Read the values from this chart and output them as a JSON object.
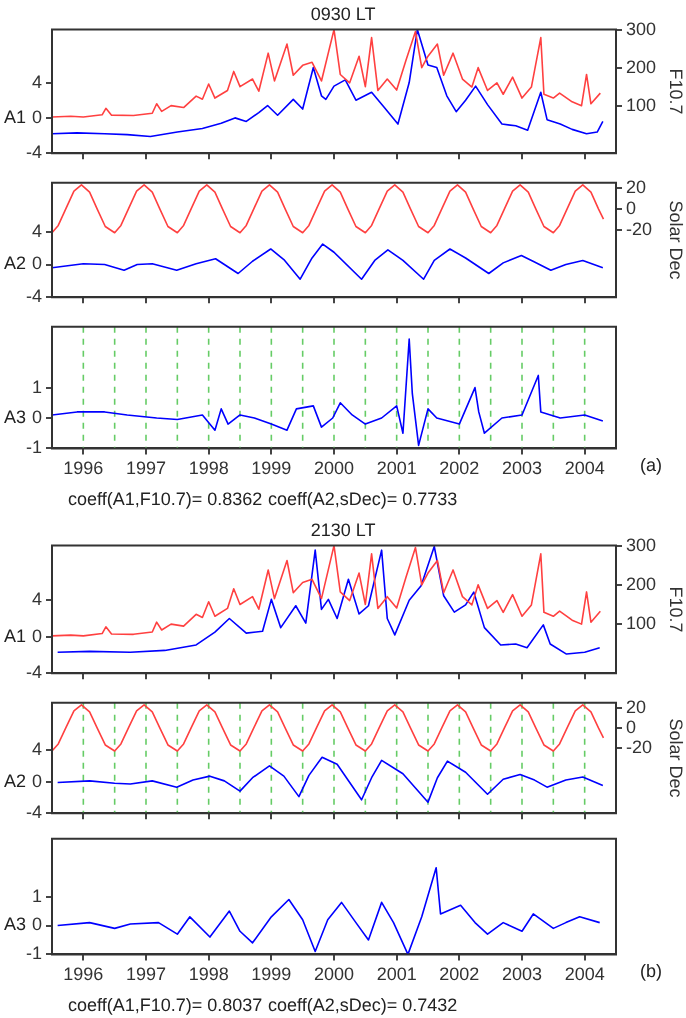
{
  "chart_data": [
    {
      "type": "line",
      "title": "0930 LT",
      "ylabel": "A1",
      "y2label": "F10.7",
      "xlim": [
        1996,
        2005
      ],
      "xticks": [
        {
          "value": 1996.5,
          "label": null
        },
        {
          "value": 1997.5,
          "label": null
        },
        {
          "value": 1998.5,
          "label": null
        },
        {
          "value": 1999.5,
          "label": null
        },
        {
          "value": 2000.5,
          "label": null
        },
        {
          "value": 2001.5,
          "label": null
        },
        {
          "value": 2002.5,
          "label": null
        },
        {
          "value": 2003.5,
          "label": null
        },
        {
          "value": 2004.5,
          "label": null
        }
      ],
      "ylim": [
        -4,
        10
      ],
      "yticks": [
        -4,
        0,
        4
      ],
      "y2lim": [
        -25,
        300
      ],
      "y2ticks": [
        100,
        200,
        300
      ],
      "tick_labels": "y",
      "series": [
        {
          "color": "#ff4040",
          "axis": "y2",
          "x": [
            1996.0,
            1996.3,
            1996.5,
            1996.8,
            1996.86,
            1996.95,
            1997.3,
            1997.6,
            1997.67,
            1997.75,
            1997.9,
            1998.1,
            1998.3,
            1998.4,
            1998.5,
            1998.6,
            1998.8,
            1998.9,
            1999.0,
            1999.2,
            1999.3,
            1999.45,
            1999.55,
            1999.75,
            1999.85,
            2000.0,
            2000.15,
            2000.3,
            2000.5,
            2000.6,
            2000.75,
            2000.9,
            2001.0,
            2001.1,
            2001.2,
            2001.35,
            2001.5,
            2001.65,
            2001.8,
            2001.9,
            2002.0,
            2002.15,
            2002.25,
            2002.4,
            2002.55,
            2002.7,
            2002.8,
            2002.95,
            2003.1,
            2003.2,
            2003.35,
            2003.5,
            2003.65,
            2003.8,
            2003.85,
            2004.0,
            2004.1,
            2004.3,
            2004.45,
            2004.53,
            2004.6,
            2004.75
          ],
          "values": [
            70,
            72,
            70,
            76,
            93,
            75,
            74,
            80,
            105,
            85,
            100,
            95,
            125,
            117,
            157,
            120,
            140,
            190,
            150,
            170,
            138,
            238,
            165,
            262,
            180,
            206,
            214,
            165,
            300,
            182,
            160,
            230,
            150,
            279,
            140,
            170,
            141,
            220,
            295,
            200,
            230,
            262,
            180,
            238,
            170,
            149,
            200,
            140,
            160,
            130,
            175,
            120,
            149,
            279,
            130,
            120,
            133,
            110,
            100,
            182,
            105,
            133
          ]
        },
        {
          "color": "#0000ff",
          "x": [
            1996.0,
            1996.4,
            1996.84,
            1997.2,
            1997.57,
            1998.0,
            1998.4,
            1998.7,
            1998.92,
            1999.1,
            1999.3,
            1999.44,
            1999.6,
            1999.85,
            2000.0,
            2000.17,
            2000.3,
            2000.37,
            2000.5,
            2000.68,
            2000.85,
            2001.1,
            2001.3,
            2001.52,
            2001.7,
            2001.83,
            2002.0,
            2002.14,
            2002.3,
            2002.45,
            2002.6,
            2002.76,
            2002.95,
            2003.18,
            2003.4,
            2003.59,
            2003.8,
            2003.9,
            2004.11,
            2004.3,
            2004.53,
            2004.7,
            2004.79
          ],
          "values": [
            -1.8,
            -1.7,
            -1.8,
            -1.9,
            -2.1,
            -1.6,
            -1.2,
            -0.6,
            0,
            -0.4,
            0.6,
            1.4,
            0.3,
            2.1,
            1.0,
            5.7,
            2.5,
            2.1,
            3.6,
            4.3,
            2.0,
            2.9,
            1.2,
            -0.7,
            4.0,
            10,
            6.0,
            5.7,
            2.5,
            0.7,
            2.0,
            3.6,
            1.5,
            -0.7,
            -0.9,
            -1.4,
            2.9,
            -0.2,
            -0.7,
            -1.3,
            -1.8,
            -1.6,
            -0.4
          ]
        }
      ]
    },
    {
      "type": "line",
      "ylabel": "A2",
      "y2label": "Solar Dec",
      "xlim": [
        1996,
        2005
      ],
      "xticks": [
        {
          "value": 1996.5,
          "label": null
        },
        {
          "value": 1997.5,
          "label": null
        },
        {
          "value": 1998.5,
          "label": null
        },
        {
          "value": 1999.5,
          "label": null
        },
        {
          "value": 2000.5,
          "label": null
        },
        {
          "value": 2001.5,
          "label": null
        },
        {
          "value": 2002.5,
          "label": null
        },
        {
          "value": 2003.5,
          "label": null
        },
        {
          "value": 2004.5,
          "label": null
        }
      ],
      "ylim": [
        -4,
        10
      ],
      "yticks": [
        -4,
        0,
        4
      ],
      "y2lim": [
        -85,
        25
      ],
      "y2ticks": [
        -20,
        0,
        20
      ],
      "tick_labels": "y",
      "series": [
        {
          "color": "#ff4040",
          "axis": "y2",
          "x": [
            1996,
            1996.1,
            1996.22,
            1996.35,
            1996.47,
            1996.6,
            1996.72,
            1996.85,
            1997,
            1997.1,
            1997.22,
            1997.35,
            1997.47,
            1997.6,
            1997.72,
            1997.85,
            1998,
            1998.1,
            1998.22,
            1998.35,
            1998.47,
            1998.6,
            1998.72,
            1998.85,
            1999,
            1999.1,
            1999.22,
            1999.35,
            1999.47,
            1999.6,
            1999.72,
            1999.85,
            2000,
            2000.1,
            2000.22,
            2000.35,
            2000.47,
            2000.6,
            2000.72,
            2000.85,
            2001,
            2001.1,
            2001.22,
            2001.35,
            2001.47,
            2001.6,
            2001.72,
            2001.85,
            2002,
            2002.1,
            2002.22,
            2002.35,
            2002.47,
            2002.6,
            2002.72,
            2002.85,
            2003,
            2003.1,
            2003.22,
            2003.35,
            2003.47,
            2003.6,
            2003.72,
            2003.85,
            2004,
            2004.1,
            2004.22,
            2004.35,
            2004.47,
            2004.6,
            2004.72,
            2004.8
          ],
          "values": [
            -23,
            -16,
            0,
            17,
            23,
            16,
            0,
            -17,
            -23,
            -16,
            0,
            17,
            23,
            16,
            0,
            -17,
            -23,
            -16,
            0,
            17,
            23,
            16,
            0,
            -17,
            -23,
            -16,
            0,
            17,
            23,
            16,
            0,
            -17,
            -23,
            -16,
            0,
            17,
            23,
            16,
            0,
            -17,
            -23,
            -16,
            0,
            17,
            23,
            16,
            0,
            -17,
            -23,
            -16,
            0,
            17,
            23,
            16,
            0,
            -17,
            -23,
            -16,
            0,
            17,
            23,
            16,
            0,
            -17,
            -23,
            -16,
            0,
            17,
            23,
            16,
            0,
            -10
          ]
        },
        {
          "color": "#0000ff",
          "x": [
            1996.0,
            1996.5,
            1996.84,
            1997.15,
            1997.36,
            1997.6,
            1997.99,
            1998.3,
            1998.61,
            1998.97,
            1999.2,
            1999.49,
            1999.7,
            1999.96,
            2000.15,
            2000.32,
            2000.5,
            2000.94,
            2001.15,
            2001.36,
            2001.6,
            2001.93,
            2002.1,
            2002.35,
            2002.6,
            2002.97,
            2003.2,
            2003.49,
            2003.7,
            2003.96,
            2004.2,
            2004.47,
            2004.79
          ],
          "values": [
            -0.4,
            0.1,
            0,
            -0.7,
            0,
            0.1,
            -0.7,
            0.1,
            0.7,
            -1.1,
            0.4,
            1.9,
            0.6,
            -1.8,
            0.8,
            2.5,
            1.5,
            -1.8,
            0.5,
            1.8,
            0.5,
            -1.8,
            0.5,
            1.9,
            0.8,
            -1.1,
            0.2,
            1.1,
            0.3,
            -0.7,
            0,
            0.5,
            -0.4
          ]
        }
      ]
    },
    {
      "type": "line",
      "ylabel": "A3",
      "xlim": [
        1996,
        2005
      ],
      "xticks": [
        {
          "value": 1996.5,
          "label": "1996"
        },
        {
          "value": 1997.5,
          "label": "1997"
        },
        {
          "value": 1998.5,
          "label": "1998"
        },
        {
          "value": 1999.5,
          "label": "1999"
        },
        {
          "value": 2000.5,
          "label": "2000"
        },
        {
          "value": 2001.5,
          "label": "2001"
        },
        {
          "value": 2002.5,
          "label": "2002"
        },
        {
          "value": 2003.5,
          "label": "2003"
        },
        {
          "value": 2004.5,
          "label": "2004"
        }
      ],
      "ylim": [
        -1,
        3
      ],
      "yticks": [
        -1,
        0,
        1
      ],
      "annotations": [
        "(a)",
        "coeff(A1,F10.7)= 0.8362",
        "coeff(A2,sDec)= 0.7733"
      ],
      "ref_lines": [
        {
          "axis": "x",
          "value": 1996.5,
          "color": "#66cc66",
          "line_style": "dashed"
        },
        {
          "axis": "x",
          "value": 1997,
          "color": "#66cc66",
          "line_style": "dashed"
        },
        {
          "axis": "x",
          "value": 1997.5,
          "color": "#66cc66",
          "line_style": "dashed"
        },
        {
          "axis": "x",
          "value": 1998,
          "color": "#66cc66",
          "line_style": "dashed"
        },
        {
          "axis": "x",
          "value": 1998.5,
          "color": "#66cc66",
          "line_style": "dashed"
        },
        {
          "axis": "x",
          "value": 1999,
          "color": "#66cc66",
          "line_style": "dashed"
        },
        {
          "axis": "x",
          "value": 1999.5,
          "color": "#66cc66",
          "line_style": "dashed"
        },
        {
          "axis": "x",
          "value": 2000,
          "color": "#66cc66",
          "line_style": "dashed"
        },
        {
          "axis": "x",
          "value": 2000.5,
          "color": "#66cc66",
          "line_style": "dashed"
        },
        {
          "axis": "x",
          "value": 2001,
          "color": "#66cc66",
          "line_style": "dashed"
        },
        {
          "axis": "x",
          "value": 2001.5,
          "color": "#66cc66",
          "line_style": "dashed"
        },
        {
          "axis": "x",
          "value": 2002,
          "color": "#66cc66",
          "line_style": "dashed"
        },
        {
          "axis": "x",
          "value": 2002.5,
          "color": "#66cc66",
          "line_style": "dashed"
        },
        {
          "axis": "x",
          "value": 2003,
          "color": "#66cc66",
          "line_style": "dashed"
        },
        {
          "axis": "x",
          "value": 2003.5,
          "color": "#66cc66",
          "line_style": "dashed"
        },
        {
          "axis": "x",
          "value": 2004,
          "color": "#66cc66",
          "line_style": "dashed"
        },
        {
          "axis": "x",
          "value": 2004.5,
          "color": "#66cc66",
          "line_style": "dashed"
        }
      ],
      "series": [
        {
          "color": "#0000ff",
          "x": [
            1996.0,
            1996.4,
            1996.84,
            1997.2,
            1997.67,
            1998.0,
            1998.4,
            1998.6,
            1998.7,
            1998.81,
            1999.0,
            1999.23,
            1999.5,
            1999.75,
            1999.9,
            2000.17,
            2000.3,
            2000.48,
            2000.6,
            2000.79,
            2001.0,
            2001.26,
            2001.5,
            2001.6,
            2001.7,
            2001.75,
            2001.85,
            2002.0,
            2002.14,
            2002.5,
            2002.75,
            2002.81,
            2002.9,
            2003.18,
            2003.5,
            2003.76,
            2003.8,
            2004.11,
            2004.5,
            2004.79
          ],
          "values": [
            0.1,
            0.2,
            0.2,
            0.1,
            0,
            -0.05,
            0.1,
            -0.4,
            0.3,
            -0.2,
            0.1,
            0,
            -0.2,
            -0.4,
            0.3,
            0.4,
            -0.3,
            0,
            0.5,
            0.1,
            -0.2,
            0,
            0.4,
            -0.5,
            2.6,
            0.8,
            -0.9,
            0.3,
            0,
            -0.2,
            1.0,
            0.2,
            -0.5,
            0,
            0.1,
            1.4,
            0.2,
            0,
            0.1,
            -0.1
          ]
        }
      ]
    },
    {
      "type": "line",
      "title": "2130 LT",
      "ylabel": "A1",
      "y2label": "F10.7",
      "xlim": [
        1996,
        2005
      ],
      "xticks": [
        {
          "value": 1996.5,
          "label": null
        },
        {
          "value": 1997.5,
          "label": null
        },
        {
          "value": 1998.5,
          "label": null
        },
        {
          "value": 1999.5,
          "label": null
        },
        {
          "value": 2000.5,
          "label": null
        },
        {
          "value": 2001.5,
          "label": null
        },
        {
          "value": 2002.5,
          "label": null
        },
        {
          "value": 2003.5,
          "label": null
        },
        {
          "value": 2004.5,
          "label": null
        }
      ],
      "ylim": [
        -4,
        10
      ],
      "yticks": [
        -4,
        0,
        4
      ],
      "y2lim": [
        -25,
        300
      ],
      "y2ticks": [
        100,
        200,
        300
      ],
      "tick_labels": "y",
      "series": [
        {
          "color": "#ff4040",
          "axis": "y2",
          "x": [
            1996.0,
            1996.3,
            1996.5,
            1996.8,
            1996.86,
            1996.95,
            1997.3,
            1997.6,
            1997.67,
            1997.75,
            1997.9,
            1998.1,
            1998.3,
            1998.4,
            1998.5,
            1998.6,
            1998.8,
            1998.9,
            1999.0,
            1999.2,
            1999.3,
            1999.45,
            1999.55,
            1999.75,
            1999.85,
            2000.0,
            2000.15,
            2000.3,
            2000.5,
            2000.6,
            2000.75,
            2000.9,
            2001.0,
            2001.1,
            2001.2,
            2001.35,
            2001.5,
            2001.65,
            2001.8,
            2001.9,
            2002.0,
            2002.15,
            2002.25,
            2002.4,
            2002.55,
            2002.7,
            2002.8,
            2002.95,
            2003.1,
            2003.2,
            2003.35,
            2003.5,
            2003.65,
            2003.8,
            2003.85,
            2004.0,
            2004.1,
            2004.3,
            2004.45,
            2004.53,
            2004.6,
            2004.75
          ],
          "values": [
            70,
            72,
            70,
            76,
            93,
            75,
            74,
            80,
            105,
            85,
            100,
            95,
            125,
            117,
            157,
            120,
            140,
            190,
            150,
            170,
            138,
            238,
            165,
            262,
            180,
            206,
            214,
            165,
            300,
            182,
            160,
            230,
            150,
            279,
            140,
            170,
            141,
            220,
            295,
            200,
            230,
            262,
            180,
            238,
            170,
            149,
            200,
            140,
            160,
            130,
            175,
            120,
            149,
            279,
            130,
            120,
            133,
            110,
            100,
            182,
            105,
            133
          ]
        },
        {
          "color": "#0000ff",
          "x": [
            1996.09,
            1996.6,
            1997.25,
            1997.8,
            1998.3,
            1998.6,
            1998.83,
            1999.1,
            1999.36,
            1999.5,
            1999.65,
            1999.89,
            2000.05,
            2000.2,
            2000.3,
            2000.41,
            2000.55,
            2000.73,
            2000.9,
            2001.05,
            2001.26,
            2001.35,
            2001.47,
            2001.7,
            2001.89,
            2002.1,
            2002.25,
            2002.42,
            2002.6,
            2002.73,
            2002.9,
            2003.16,
            2003.4,
            2003.58,
            2003.84,
            2003.95,
            2004.21,
            2004.5,
            2004.74
          ],
          "values": [
            -1.7,
            -1.6,
            -1.7,
            -1.5,
            -0.9,
            0.5,
            2,
            0.4,
            0.6,
            4.1,
            1.0,
            3.4,
            1.5,
            9.5,
            3.0,
            4.1,
            2.0,
            6.3,
            2.5,
            3.4,
            9.5,
            2.0,
            0.2,
            4.0,
            5.6,
            9.9,
            4.5,
            2.7,
            3.5,
            4.9,
            1.0,
            -0.9,
            -0.8,
            -1.2,
            1.3,
            -0.8,
            -1.9,
            -1.7,
            -1.2
          ]
        }
      ]
    },
    {
      "type": "line",
      "ylabel": "A2",
      "y2label": "Solar Dec",
      "xlim": [
        1996,
        2005
      ],
      "xticks": [
        {
          "value": 1996.5,
          "label": null
        },
        {
          "value": 1997.5,
          "label": null
        },
        {
          "value": 1998.5,
          "label": null
        },
        {
          "value": 1999.5,
          "label": null
        },
        {
          "value": 2000.5,
          "label": null
        },
        {
          "value": 2001.5,
          "label": null
        },
        {
          "value": 2002.5,
          "label": null
        },
        {
          "value": 2003.5,
          "label": null
        },
        {
          "value": 2004.5,
          "label": null
        }
      ],
      "ylim": [
        -4,
        10
      ],
      "yticks": [
        -4,
        0,
        4
      ],
      "y2lim": [
        -85,
        25
      ],
      "y2ticks": [
        -20,
        0,
        20
      ],
      "tick_labels": "y",
      "ref_lines": [
        {
          "axis": "x",
          "value": 1996.5,
          "color": "#66cc66",
          "line_style": "dashed"
        },
        {
          "axis": "x",
          "value": 1997,
          "color": "#66cc66",
          "line_style": "dashed"
        },
        {
          "axis": "x",
          "value": 1997.5,
          "color": "#66cc66",
          "line_style": "dashed"
        },
        {
          "axis": "x",
          "value": 1998,
          "color": "#66cc66",
          "line_style": "dashed"
        },
        {
          "axis": "x",
          "value": 1998.5,
          "color": "#66cc66",
          "line_style": "dashed"
        },
        {
          "axis": "x",
          "value": 1999,
          "color": "#66cc66",
          "line_style": "dashed"
        },
        {
          "axis": "x",
          "value": 1999.5,
          "color": "#66cc66",
          "line_style": "dashed"
        },
        {
          "axis": "x",
          "value": 2000,
          "color": "#66cc66",
          "line_style": "dashed"
        },
        {
          "axis": "x",
          "value": 2000.5,
          "color": "#66cc66",
          "line_style": "dashed"
        },
        {
          "axis": "x",
          "value": 2001,
          "color": "#66cc66",
          "line_style": "dashed"
        },
        {
          "axis": "x",
          "value": 2001.5,
          "color": "#66cc66",
          "line_style": "dashed"
        },
        {
          "axis": "x",
          "value": 2002,
          "color": "#66cc66",
          "line_style": "dashed"
        },
        {
          "axis": "x",
          "value": 2002.5,
          "color": "#66cc66",
          "line_style": "dashed"
        },
        {
          "axis": "x",
          "value": 2003,
          "color": "#66cc66",
          "line_style": "dashed"
        },
        {
          "axis": "x",
          "value": 2003.5,
          "color": "#66cc66",
          "line_style": "dashed"
        },
        {
          "axis": "x",
          "value": 2004,
          "color": "#66cc66",
          "line_style": "dashed"
        },
        {
          "axis": "x",
          "value": 2004.5,
          "color": "#66cc66",
          "line_style": "dashed"
        }
      ],
      "series": [
        {
          "color": "#ff4040",
          "axis": "y2",
          "x": [
            1996,
            1996.1,
            1996.22,
            1996.35,
            1996.47,
            1996.6,
            1996.72,
            1996.85,
            1997,
            1997.1,
            1997.22,
            1997.35,
            1997.47,
            1997.6,
            1997.72,
            1997.85,
            1998,
            1998.1,
            1998.22,
            1998.35,
            1998.47,
            1998.6,
            1998.72,
            1998.85,
            1999,
            1999.1,
            1999.22,
            1999.35,
            1999.47,
            1999.6,
            1999.72,
            1999.85,
            2000,
            2000.1,
            2000.22,
            2000.35,
            2000.47,
            2000.6,
            2000.72,
            2000.85,
            2001,
            2001.1,
            2001.22,
            2001.35,
            2001.47,
            2001.6,
            2001.72,
            2001.85,
            2002,
            2002.1,
            2002.22,
            2002.35,
            2002.47,
            2002.6,
            2002.72,
            2002.85,
            2003,
            2003.1,
            2003.22,
            2003.35,
            2003.47,
            2003.6,
            2003.72,
            2003.85,
            2004,
            2004.1,
            2004.22,
            2004.35,
            2004.47,
            2004.6,
            2004.72,
            2004.8
          ],
          "values": [
            -23,
            -16,
            0,
            17,
            23,
            16,
            0,
            -17,
            -23,
            -16,
            0,
            17,
            23,
            16,
            0,
            -17,
            -23,
            -16,
            0,
            17,
            23,
            16,
            0,
            -17,
            -23,
            -16,
            0,
            17,
            23,
            16,
            0,
            -17,
            -23,
            -16,
            0,
            17,
            23,
            16,
            0,
            -17,
            -23,
            -16,
            0,
            17,
            23,
            16,
            0,
            -17,
            -23,
            -16,
            0,
            17,
            23,
            16,
            0,
            -17,
            -23,
            -16,
            0,
            17,
            23,
            16,
            0,
            -17,
            -23,
            -16,
            0,
            17,
            23,
            16,
            0,
            -10
          ]
        },
        {
          "color": "#0000ff",
          "x": [
            1996.09,
            1996.6,
            1997.0,
            1997.25,
            1997.6,
            1997.99,
            1998.25,
            1998.52,
            1998.75,
            1999.0,
            1999.2,
            1999.47,
            1999.7,
            1999.94,
            2000.1,
            2000.31,
            2000.55,
            2000.94,
            2001.1,
            2001.26,
            2001.6,
            2002.0,
            2002.15,
            2002.31,
            2002.6,
            2002.95,
            2003.2,
            2003.47,
            2003.7,
            2003.9,
            2004.2,
            2004.47,
            2004.79
          ],
          "values": [
            -0.1,
            0.1,
            -0.2,
            -0.3,
            0.1,
            -0.7,
            0.2,
            0.7,
            0.1,
            -1.2,
            0.5,
            2,
            0.7,
            -1.9,
            0.8,
            3.1,
            2.2,
            -2.3,
            0.5,
            2.7,
            1.0,
            -2.6,
            0.5,
            2.6,
            1.2,
            -1.6,
            0.3,
            0.9,
            0.2,
            -0.7,
            0.2,
            0.6,
            -0.5
          ]
        }
      ]
    },
    {
      "type": "line",
      "ylabel": "A3",
      "xlim": [
        1996,
        2005
      ],
      "xticks": [
        {
          "value": 1996.5,
          "label": "1996"
        },
        {
          "value": 1997.5,
          "label": "1997"
        },
        {
          "value": 1998.5,
          "label": "1998"
        },
        {
          "value": 1999.5,
          "label": "1999"
        },
        {
          "value": 2000.5,
          "label": "2000"
        },
        {
          "value": 2001.5,
          "label": "2001"
        },
        {
          "value": 2002.5,
          "label": "2002"
        },
        {
          "value": 2003.5,
          "label": "2003"
        },
        {
          "value": 2004.5,
          "label": "2004"
        }
      ],
      "ylim": [
        -1,
        3
      ],
      "yticks": [
        -1,
        0,
        1
      ],
      "annotations": [
        "(b)",
        "coeff(A1,F10.7)= 0.8037",
        "coeff(A2,sDec)= 0.7432"
      ],
      "series": [
        {
          "color": "#0000ff",
          "x": [
            1996.09,
            1996.6,
            1997.0,
            1997.25,
            1997.7,
            1998.0,
            1998.2,
            1998.52,
            1998.83,
            1999.0,
            1999.2,
            1999.5,
            1999.78,
            2000.0,
            2000.2,
            2000.4,
            2000.62,
            2000.85,
            2001.05,
            2001.26,
            2001.45,
            2001.68,
            2001.9,
            2002.13,
            2002.2,
            2002.52,
            2002.75,
            2002.95,
            2003.2,
            2003.5,
            2003.68,
            2004.0,
            2004.2,
            2004.42,
            2004.74
          ],
          "values": [
            0,
            0.1,
            -0.1,
            0.05,
            0.1,
            -0.3,
            0.3,
            -0.4,
            0.5,
            -0.2,
            -0.6,
            0.3,
            0.9,
            0.2,
            -0.9,
            0.2,
            0.8,
            0.1,
            -0.5,
            0.8,
            0.1,
            -1,
            0.3,
            2.0,
            0.4,
            0.7,
            0.1,
            -0.3,
            0.1,
            -0.2,
            0.4,
            -0.1,
            0.1,
            0.3,
            0.1
          ]
        }
      ]
    }
  ]
}
